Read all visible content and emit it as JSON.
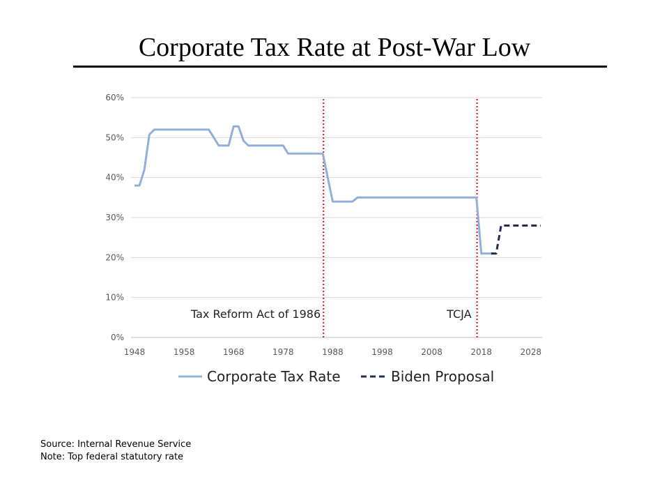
{
  "slide": {
    "title": "Corporate Tax Rate at Post-War Low",
    "source": "Source: Internal Revenue Service",
    "note": "Note: Top federal statutory rate"
  },
  "colors": {
    "corporate_rate": "#92aedb",
    "biden_proposal": "#1f2d4a",
    "event_line": "#e02020",
    "grid": "#d9d9d9",
    "axis_text": "#595959"
  },
  "chart_data": {
    "type": "line",
    "title": "",
    "xlabel": "",
    "ylabel": "",
    "xlim": [
      1948,
      2030
    ],
    "ylim": [
      0,
      60
    ],
    "y_unit": "%",
    "x_ticks": [
      1948,
      1958,
      1968,
      1978,
      1988,
      1998,
      2008,
      2018,
      2028
    ],
    "y_ticks": [
      0,
      10,
      20,
      30,
      40,
      50,
      60
    ],
    "y_tick_labels": [
      "0%",
      "10%",
      "20%",
      "30%",
      "40%",
      "50%",
      "60%"
    ],
    "grid": "horizontal",
    "legend_position": "bottom",
    "series": [
      {
        "name": "Corporate Tax Rate",
        "style": "solid",
        "x": [
          1948,
          1949,
          1950,
          1951,
          1952,
          1953,
          1963,
          1964,
          1965,
          1966,
          1967,
          1968,
          1969,
          1970,
          1971,
          1978,
          1979,
          1986,
          1987,
          1988,
          1991,
          1992,
          1993,
          2017,
          2018,
          2019,
          2020
        ],
        "y": [
          38,
          38,
          42,
          50.75,
          52,
          52,
          52,
          50,
          48,
          48,
          48,
          52.8,
          52.8,
          49.2,
          48,
          48,
          46,
          46,
          40,
          34,
          34,
          34,
          35,
          35,
          21,
          21,
          21
        ]
      },
      {
        "name": "Biden Proposal",
        "style": "dashed",
        "x": [
          2020,
          2021,
          2022,
          2030
        ],
        "y": [
          21,
          21,
          28,
          28
        ]
      }
    ],
    "annotations": [
      {
        "label": "Tax Reform Act of 1986",
        "x": 1986,
        "style": "dotted vertical line"
      },
      {
        "label": "TCJA",
        "x": 2017,
        "style": "dotted vertical line"
      }
    ]
  }
}
